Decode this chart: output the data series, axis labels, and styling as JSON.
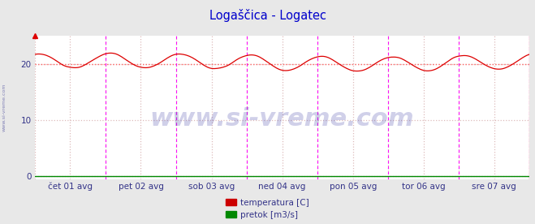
{
  "title": "Logaščica - Logatec",
  "title_color": "#0000cc",
  "bg_color": "#e8e8e8",
  "plot_bg_color": "#ffffff",
  "grid_color": "#ddbbbb",
  "ylabel_values": [
    0,
    10,
    20
  ],
  "ylim": [
    -0.5,
    25
  ],
  "xlim": [
    0,
    336
  ],
  "tick_labels": [
    "čet 01 avg",
    "pet 02 avg",
    "sob 03 avg",
    "ned 04 avg",
    "pon 05 avg",
    "tor 06 avg",
    "sre 07 avg"
  ],
  "tick_positions": [
    24,
    72,
    120,
    168,
    216,
    264,
    312
  ],
  "vline_positions": [
    48,
    96,
    144,
    192,
    240,
    288,
    336
  ],
  "vline_color": "#ff00ff",
  "hline_color": "#ff6666",
  "hline_value": 20,
  "temp_color": "#dd0000",
  "pretok_color": "#008800",
  "watermark": "www.si-vreme.com",
  "watermark_color": "#4444aa",
  "watermark_alpha": 0.25,
  "watermark_fontsize": 22,
  "side_watermark_color": "#6666aa",
  "legend_temp_color": "#cc0000",
  "legend_pretok_color": "#008800",
  "legend_temp_label": "temperatura [C]",
  "legend_pretok_label": "pretok [m3/s]",
  "n_points": 337,
  "temp_base": 20.3,
  "temp_amplitude": 1.3,
  "temp_period": 48,
  "pretok_value": 0.02
}
